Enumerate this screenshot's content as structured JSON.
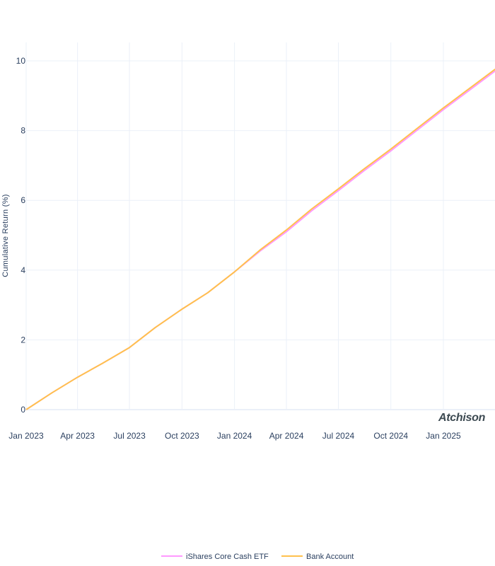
{
  "chart_data": {
    "type": "line",
    "title": "",
    "xlabel": "",
    "ylabel": "Cumulative Return (%)",
    "x_ticks": [
      "Jan 2023",
      "Apr 2023",
      "Jul 2023",
      "Oct 2023",
      "Jan 2024",
      "Apr 2024",
      "Jul 2024",
      "Oct 2024",
      "Jan 2025"
    ],
    "y_ticks": [
      0,
      2,
      4,
      6,
      8,
      10
    ],
    "xlim": [
      "2023-01-01",
      "2025-05-01"
    ],
    "ylim": [
      -0.3,
      10.5
    ],
    "grid": true,
    "legend_position": "bottom-center",
    "watermark": "Atchison",
    "series": [
      {
        "name": "iShares Core Cash ETF",
        "color": "#ff99ff",
        "x": [
          "2023-01-01",
          "2023-02-15",
          "2023-04-01",
          "2023-05-15",
          "2023-07-01",
          "2023-08-15",
          "2023-10-01",
          "2023-11-15",
          "2024-01-01",
          "2024-02-15",
          "2024-04-01",
          "2024-05-15",
          "2024-07-01",
          "2024-08-15",
          "2024-10-01",
          "2024-11-15",
          "2025-01-01",
          "2025-02-15",
          "2025-04-01",
          "2025-04-30"
        ],
        "y": [
          0.0,
          0.48,
          0.93,
          1.33,
          1.78,
          2.35,
          2.88,
          3.35,
          3.95,
          4.55,
          5.1,
          5.7,
          6.28,
          6.85,
          7.42,
          8.0,
          8.6,
          9.15,
          9.7,
          9.93
        ]
      },
      {
        "name": "Bank Account",
        "color": "#ffc14d",
        "x": [
          "2023-01-01",
          "2023-02-15",
          "2023-04-01",
          "2023-05-15",
          "2023-07-01",
          "2023-08-15",
          "2023-10-01",
          "2023-11-15",
          "2024-01-01",
          "2024-02-15",
          "2024-04-01",
          "2024-05-15",
          "2024-07-01",
          "2024-08-15",
          "2024-10-01",
          "2024-11-15",
          "2025-01-01",
          "2025-02-15",
          "2025-04-01",
          "2025-04-30"
        ],
        "y": [
          0.0,
          0.48,
          0.93,
          1.33,
          1.78,
          2.35,
          2.88,
          3.35,
          3.95,
          4.58,
          5.15,
          5.75,
          6.33,
          6.9,
          7.47,
          8.05,
          8.65,
          9.2,
          9.75,
          9.97
        ]
      }
    ]
  }
}
